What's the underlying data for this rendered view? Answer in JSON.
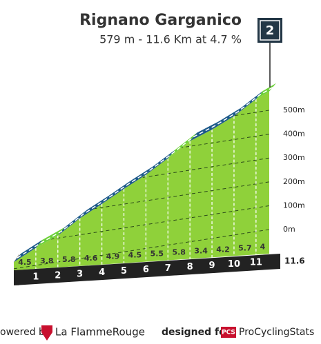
{
  "chart_data": {
    "type": "climb-profile",
    "title": "Rignano Garganico",
    "subtitle": "579 m - 11.6 Km at 4.7 %",
    "category": "2",
    "summit_elevation": 579,
    "x": [
      1,
      2,
      3,
      4,
      5,
      6,
      7,
      8,
      9,
      10,
      11,
      11.6
    ],
    "values": [
      4.5,
      3.8,
      5.8,
      4.6,
      4.9,
      4.5,
      5.5,
      5.8,
      3.4,
      4.2,
      5.7,
      4.0
    ],
    "road_colors": [
      "#1d5a8a",
      "#6dd13a",
      "#1d5a8a",
      "#1d5a8a",
      "#1d5a8a",
      "#1d5a8a",
      "#1d5a8a",
      "#6dd13a",
      "#1d5a8a",
      "#1d5a8a",
      "#1d5a8a",
      "#6dd13a"
    ],
    "face_color": "#8fd13a",
    "yticks": [
      {
        "value": 0,
        "label": "0m"
      },
      {
        "value": 100,
        "label": "100m"
      },
      {
        "value": 200,
        "label": "200m"
      },
      {
        "value": 300,
        "label": "300m"
      },
      {
        "value": 400,
        "label": "400m"
      },
      {
        "value": 500,
        "label": "500m"
      }
    ],
    "grid": true
  },
  "footer": {
    "powered": "owered by",
    "brand": "La FlammeRouge",
    "designed": "designed for",
    "pcs": "PCS",
    "site": "ProCyclingStats"
  }
}
